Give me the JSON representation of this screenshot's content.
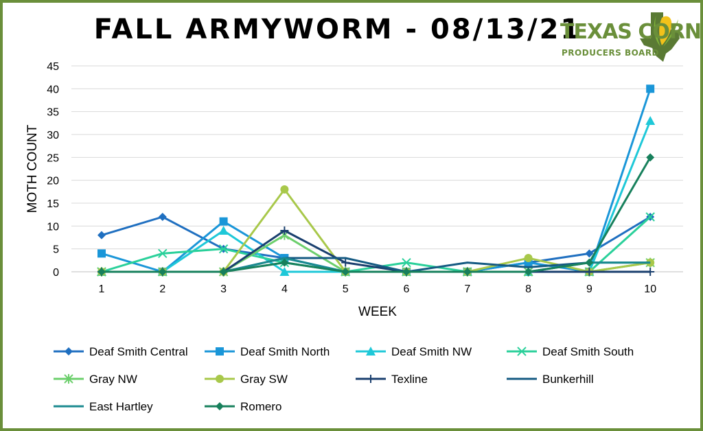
{
  "logo": {
    "name": "TEXAS CORN",
    "subtitle": "PRODUCERS BOARD"
  },
  "chart_data": {
    "type": "line",
    "title": "FALL ARMYWORM - 08/13/21",
    "xlabel": "WEEK",
    "ylabel": "MOTH COUNT",
    "x": [
      1,
      2,
      3,
      4,
      5,
      6,
      7,
      8,
      9,
      10
    ],
    "ylim": [
      0,
      45
    ],
    "yticks": [
      0,
      5,
      10,
      15,
      20,
      25,
      30,
      35,
      40,
      45
    ],
    "grid": true,
    "legend_position": "bottom",
    "series": [
      {
        "name": "Deaf Smith Central",
        "color": "#1f6fc0",
        "marker": "diamond",
        "values": [
          8,
          12,
          5,
          3,
          0,
          0,
          0,
          2,
          4,
          12
        ]
      },
      {
        "name": "Deaf Smith North",
        "color": "#1a96d8",
        "marker": "square",
        "values": [
          4,
          0,
          11,
          3,
          0,
          0,
          0,
          2,
          0,
          40
        ]
      },
      {
        "name": "Deaf Smith NW",
        "color": "#1ec8d8",
        "marker": "triangle",
        "values": [
          0,
          0,
          9,
          0,
          0,
          0,
          0,
          0,
          0,
          33
        ]
      },
      {
        "name": "Deaf Smith South",
        "color": "#2ad09a",
        "marker": "x",
        "values": [
          0,
          4,
          5,
          2,
          0,
          2,
          0,
          0,
          0,
          12
        ]
      },
      {
        "name": "Gray NW",
        "color": "#6ccf6c",
        "marker": "star",
        "values": [
          0,
          0,
          0,
          8,
          0,
          0,
          0,
          0,
          0,
          2
        ]
      },
      {
        "name": "Gray SW",
        "color": "#a8c84a",
        "marker": "circle",
        "values": [
          0,
          0,
          0,
          18,
          0,
          0,
          0,
          3,
          0,
          2
        ]
      },
      {
        "name": "Texline",
        "color": "#1a3f6e",
        "marker": "plus",
        "values": [
          0,
          0,
          0,
          9,
          2,
          0,
          0,
          0,
          0,
          0
        ]
      },
      {
        "name": "Bunkerhill",
        "color": "#155a82",
        "marker": "none",
        "values": [
          0,
          0,
          0,
          3,
          3,
          0,
          2,
          1,
          2,
          2
        ]
      },
      {
        "name": "East Hartley",
        "color": "#1b8a8f",
        "marker": "none",
        "values": [
          0,
          0,
          0,
          3,
          0,
          0,
          0,
          0,
          2,
          2
        ]
      },
      {
        "name": "Romero",
        "color": "#17805c",
        "marker": "diamond",
        "values": [
          0,
          0,
          0,
          2,
          0,
          0,
          0,
          0,
          2,
          25
        ]
      }
    ]
  }
}
